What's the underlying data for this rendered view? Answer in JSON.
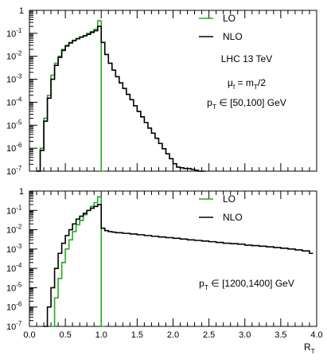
{
  "chart_data": [
    {
      "type": "line",
      "xlim": [
        0,
        4
      ],
      "ylim": [
        1e-07,
        1
      ],
      "yscale": "log",
      "y_tick_labels": [
        "1",
        "10^-1",
        "10^-2",
        "10^-3",
        "10^-4",
        "10^-5",
        "10^-6",
        "10^-7"
      ],
      "legend": [
        {
          "label": "LO",
          "color": "#22aa22"
        },
        {
          "label": "NLO",
          "color": "#000000"
        }
      ],
      "annotations": [
        "LHC 13 TeV",
        "μ_f = m_T/2",
        "p_T ∈ [50,100] GeV"
      ],
      "series": [
        {
          "name": "LO",
          "color": "#22aa22",
          "x": [
            0.1,
            0.15,
            0.2,
            0.25,
            0.3,
            0.35,
            0.4,
            0.45,
            0.5,
            0.55,
            0.6,
            0.65,
            0.7,
            0.75,
            0.8,
            0.85,
            0.9,
            0.95,
            1.0
          ],
          "values": [
            1e-07,
            1e-06,
            2e-05,
            0.0002,
            0.0015,
            0.005,
            0.01,
            0.02,
            0.03,
            0.04,
            0.05,
            0.06,
            0.07,
            0.08,
            0.1,
            0.12,
            0.15,
            0.35,
            1e-07
          ]
        },
        {
          "name": "NLO",
          "color": "#000000",
          "x": [
            0.1,
            0.15,
            0.2,
            0.25,
            0.3,
            0.35,
            0.4,
            0.45,
            0.5,
            0.55,
            0.6,
            0.65,
            0.7,
            0.75,
            0.8,
            0.85,
            0.9,
            0.95,
            1.0,
            1.05,
            1.1,
            1.15,
            1.2,
            1.25,
            1.3,
            1.35,
            1.4,
            1.45,
            1.5,
            1.55,
            1.6,
            1.65,
            1.7,
            1.75,
            1.8,
            1.85,
            1.9,
            1.95,
            2.0,
            2.05,
            2.1,
            2.15,
            2.2,
            2.25,
            2.3,
            2.35,
            2.4
          ],
          "values": [
            1e-07,
            8e-07,
            1.5e-05,
            0.00015,
            0.001,
            0.004,
            0.009,
            0.018,
            0.028,
            0.038,
            0.048,
            0.058,
            0.068,
            0.078,
            0.09,
            0.11,
            0.13,
            0.2,
            0.04,
            0.012,
            0.005,
            0.0025,
            0.0013,
            0.0007,
            0.0004,
            0.00022,
            0.00013,
            7e-05,
            4e-05,
            2.3e-05,
            1.3e-05,
            7.5e-06,
            4.5e-06,
            2.7e-06,
            1.6e-06,
            9.5e-07,
            5.7e-07,
            3.5e-07,
            2.1e-07,
            1.5e-07,
            1.4e-07,
            1.3e-07,
            1.3e-07,
            1.2e-07,
            1.1e-07,
            1e-07,
            1e-07
          ]
        }
      ]
    },
    {
      "type": "line",
      "xlim": [
        0,
        4
      ],
      "ylim": [
        1e-07,
        1
      ],
      "yscale": "log",
      "xlabel": "R_T",
      "x_ticks": [
        "0.0",
        "0.5",
        "1.0",
        "1.5",
        "2.0",
        "2.5",
        "3.0",
        "3.5",
        "4.0"
      ],
      "y_tick_labels": [
        "1",
        "10^-1",
        "10^-2",
        "10^-3",
        "10^-4",
        "10^-5",
        "10^-6",
        "10^-7"
      ],
      "legend": [
        {
          "label": "LO",
          "color": "#22aa22"
        },
        {
          "label": "NLO",
          "color": "#000000"
        }
      ],
      "annotations": [
        "p_T ∈ [1200,1400] GeV"
      ],
      "series": [
        {
          "name": "LO",
          "color": "#22aa22",
          "x": [
            0.3,
            0.35,
            0.4,
            0.45,
            0.5,
            0.55,
            0.6,
            0.65,
            0.7,
            0.75,
            0.8,
            0.85,
            0.9,
            0.95,
            1.0
          ],
          "values": [
            1e-07,
            3e-06,
            3e-05,
            0.0002,
            0.001,
            0.003,
            0.008,
            0.018,
            0.03,
            0.06,
            0.1,
            0.16,
            0.25,
            0.5,
            1e-07
          ]
        },
        {
          "name": "NLO",
          "color": "#000000",
          "x": [
            0.2,
            0.25,
            0.3,
            0.35,
            0.4,
            0.45,
            0.5,
            0.55,
            0.6,
            0.65,
            0.7,
            0.75,
            0.8,
            0.85,
            0.9,
            0.95,
            1.0,
            1.05,
            1.1,
            1.15,
            1.2,
            1.3,
            1.4,
            1.5,
            1.6,
            1.7,
            1.8,
            1.9,
            2.0,
            2.1,
            2.2,
            2.3,
            2.4,
            2.5,
            2.6,
            2.7,
            2.8,
            2.9,
            3.0,
            3.1,
            3.2,
            3.3,
            3.4,
            3.5,
            3.6,
            3.7,
            3.8,
            3.9
          ],
          "values": [
            1e-07,
            1e-06,
            1e-05,
            0.0001,
            0.0006,
            0.002,
            0.005,
            0.01,
            0.02,
            0.035,
            0.05,
            0.07,
            0.1,
            0.13,
            0.16,
            0.2,
            0.012,
            0.009,
            0.008,
            0.0075,
            0.007,
            0.0065,
            0.006,
            0.0055,
            0.005,
            0.0046,
            0.0042,
            0.0039,
            0.0036,
            0.0033,
            0.003,
            0.0028,
            0.0026,
            0.0024,
            0.0022,
            0.002,
            0.0019,
            0.0018,
            0.0016,
            0.0015,
            0.0014,
            0.0013,
            0.0012,
            0.0011,
            0.001,
            0.0009,
            0.0008,
            0.0006
          ]
        }
      ]
    }
  ]
}
